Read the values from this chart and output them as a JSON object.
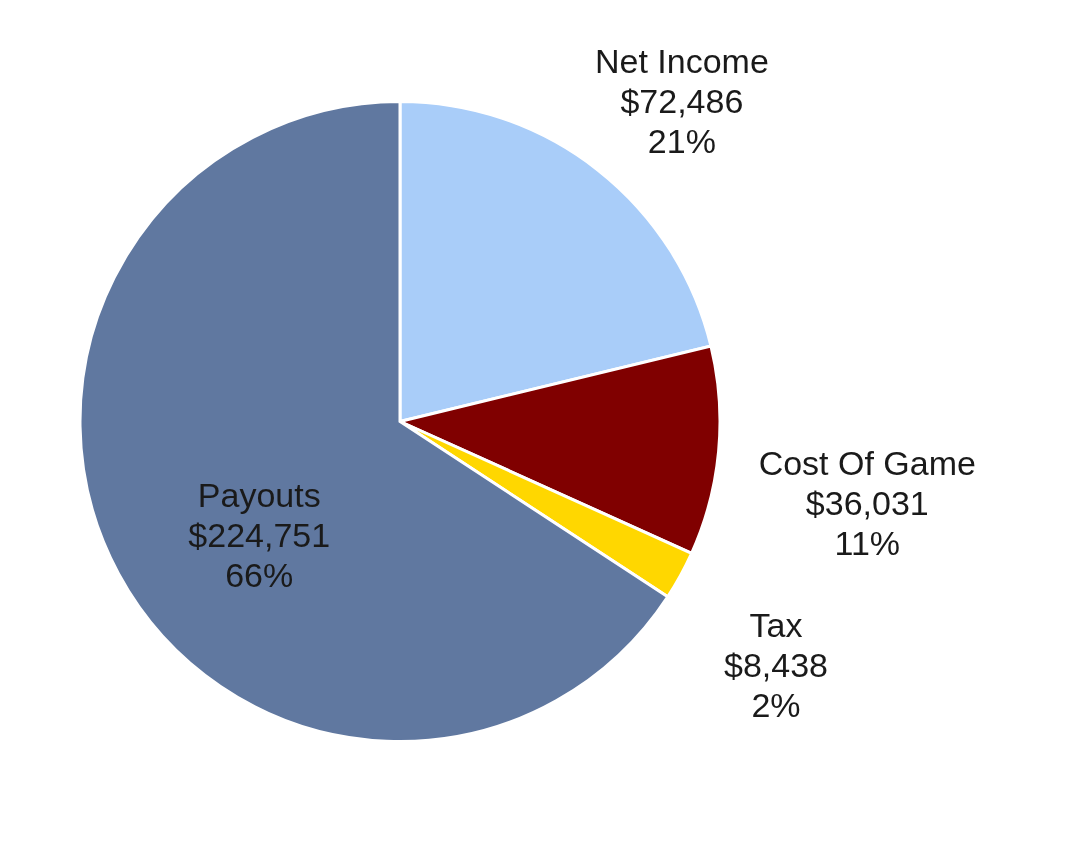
{
  "chart_data": {
    "type": "pie",
    "categories": [
      "Net Income",
      "Cost Of Game",
      "Tax",
      "Payouts"
    ],
    "values": [
      72486,
      36031,
      8438,
      224751
    ],
    "value_labels": [
      "$72,486\n21%",
      "$36,031\n11%",
      "$8,438\n2%",
      "$224,751\n66%"
    ],
    "colors": [
      "#a9cdf9",
      "#800000",
      "#ffd700",
      "#6078a0"
    ]
  }
}
